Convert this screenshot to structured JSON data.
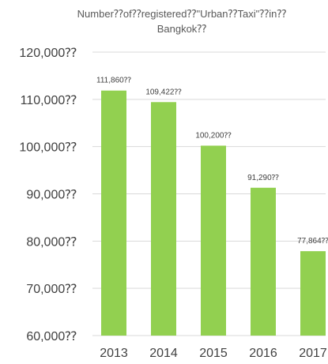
{
  "chart_data": {
    "type": "bar",
    "title_lines": [
      "Number⁇of⁇registered⁇\"Urban⁇Taxi\"⁇in⁇",
      "Bangkok⁇"
    ],
    "categories": [
      "2013",
      "2014",
      "2015",
      "2016",
      "2017"
    ],
    "values": [
      111860,
      109422,
      100200,
      91290,
      77864
    ],
    "data_labels": [
      "111,860⁇",
      "109,422⁇",
      "100,200⁇",
      "91,290⁇",
      "77,864⁇"
    ],
    "ylim": [
      60000,
      120000
    ],
    "yticks": [
      60000,
      70000,
      80000,
      90000,
      100000,
      110000,
      120000
    ],
    "ytick_labels": [
      "60,000⁇",
      "70,000⁇",
      "80,000⁇",
      "90,000⁇",
      "100,000⁇",
      "110,000⁇",
      "120,000⁇"
    ],
    "grid": true,
    "legend": "none",
    "colors": {
      "bar": "#92d050",
      "grid": "#d9d9d9",
      "text": "#404040"
    }
  }
}
